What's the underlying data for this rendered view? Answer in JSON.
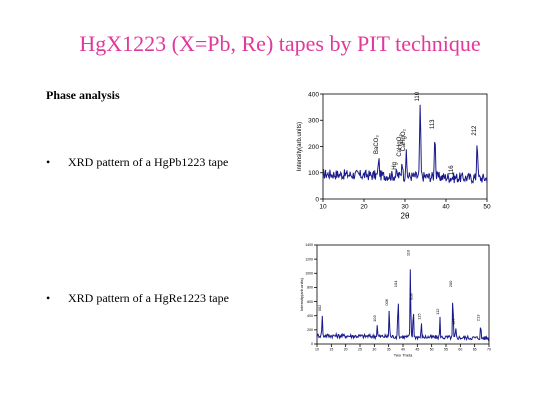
{
  "slide": {
    "title": "HgX1223 (X=Pb, Re) tapes by PIT technique",
    "section_heading": "Phase analysis",
    "bullets": [
      {
        "marker": "•",
        "text": "XRD pattern of a HgPb1223 tape"
      },
      {
        "marker": "•",
        "text": "XRD pattern of a HgRe1223 tape"
      }
    ]
  },
  "colors": {
    "title": "#e0399b",
    "trace": "#1a1a8c"
  },
  "chart_data": [
    {
      "type": "line",
      "xlabel": "2θ",
      "ylabel": "Intensity(arb.units)",
      "xlim": [
        10,
        50
      ],
      "ylim": [
        0,
        400
      ],
      "xticks": [
        "10",
        "20",
        "30",
        "40",
        "50"
      ],
      "yticks": [
        "0",
        "100",
        "200",
        "300",
        "400"
      ],
      "peaks": [
        {
          "x": 23.6,
          "y": 160,
          "label": "BaCO₃"
        },
        {
          "x": 28.0,
          "y": 100,
          "label": "Hg"
        },
        {
          "x": 29.3,
          "y": 150,
          "label": "CaHgO₂"
        },
        {
          "x": 30.3,
          "y": 170,
          "label": "CaHgO₂"
        },
        {
          "x": 33.7,
          "y": 360,
          "label": "110"
        },
        {
          "x": 37.3,
          "y": 255,
          "label": "113"
        },
        {
          "x": 42.0,
          "y": 80,
          "label": "116"
        },
        {
          "x": 47.6,
          "y": 230,
          "label": "212"
        }
      ]
    },
    {
      "type": "line",
      "xlabel": "Two Theta",
      "ylabel": "Intensity(arb.units)",
      "xlim": [
        10,
        70
      ],
      "ylim": [
        0,
        1400
      ],
      "xticks": [
        "10",
        "15",
        "20",
        "25",
        "30",
        "35",
        "40",
        "45",
        "50",
        "55",
        "60",
        "65",
        "70"
      ],
      "yticks": [
        "0",
        "200",
        "400",
        "600",
        "800",
        "1000",
        "1200",
        "1400"
      ],
      "peaks": [
        {
          "x": 11.8,
          "y": 420,
          "label": "002"
        },
        {
          "x": 31.0,
          "y": 270,
          "label": "103"
        },
        {
          "x": 35.2,
          "y": 500,
          "label": "006"
        },
        {
          "x": 38.3,
          "y": 760,
          "label": "104"
        },
        {
          "x": 42.6,
          "y": 1200,
          "label": "110"
        },
        {
          "x": 43.6,
          "y": 580,
          "label": "008"
        },
        {
          "x": 46.4,
          "y": 300,
          "label": "115"
        },
        {
          "x": 52.9,
          "y": 370,
          "label": "112"
        },
        {
          "x": 57.4,
          "y": 760,
          "label": "200"
        },
        {
          "x": 58.4,
          "y": 230,
          "label": "116"
        },
        {
          "x": 67.1,
          "y": 280,
          "label": "213"
        }
      ]
    }
  ]
}
